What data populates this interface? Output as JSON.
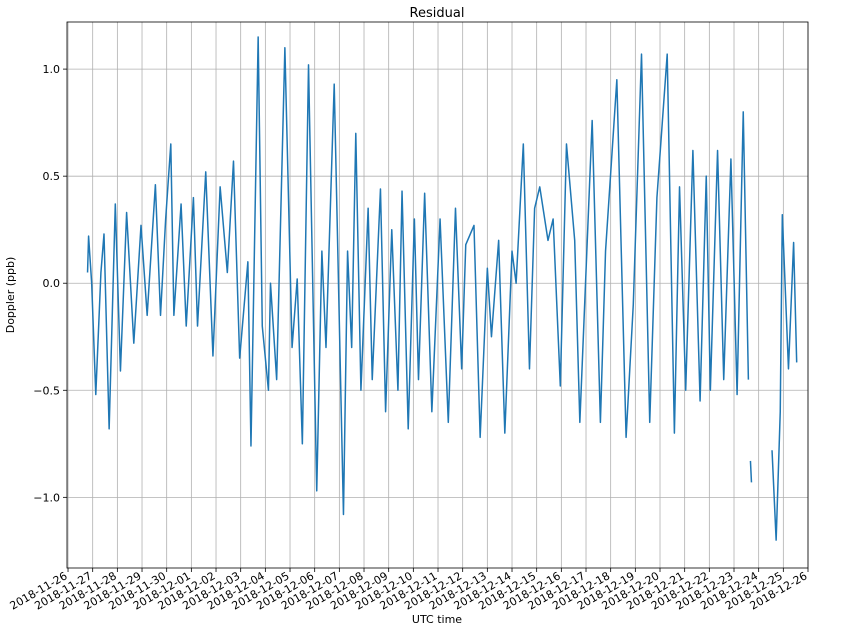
{
  "chart_data": {
    "type": "line",
    "title": "Residual",
    "x_label": "UTC time",
    "y_label": "Doppler (ppb)",
    "x": [
      "2018-11-26 19:00",
      "2018-11-26 20:00",
      "2018-11-26 23:00",
      "2018-11-27 03:00",
      "2018-11-27 08:00",
      "2018-11-27 11:00",
      "2018-11-27 16:00",
      "2018-11-27 22:00",
      "2018-11-28 03:00",
      "2018-11-28 09:00",
      "2018-11-28 16:00",
      "2018-11-28 23:00",
      "2018-11-29 05:00",
      "2018-11-29 13:00",
      "2018-11-29 18:00",
      "2018-11-29 23:00",
      "2018-11-30 04:00",
      "2018-11-30 07:00",
      "2018-11-30 14:00",
      "2018-11-30 19:00",
      "2018-12-01 02:00",
      "2018-12-01 06:00",
      "2018-12-01 14:00",
      "2018-12-01 21:00",
      "2018-12-02 04:00",
      "2018-12-02 11:00",
      "2018-12-02 17:00",
      "2018-12-02 23:00",
      "2018-12-03 07:00",
      "2018-12-03 10:00",
      "2018-12-03 17:00",
      "2018-12-03 21:00",
      "2018-12-04 03:00",
      "2018-12-04 05:00",
      "2018-12-04 11:00",
      "2018-12-04 19:00",
      "2018-12-05 02:00",
      "2018-12-05 07:00",
      "2018-12-05 12:00",
      "2018-12-05 18:00",
      "2018-12-06 02:00",
      "2018-12-06 07:00",
      "2018-12-06 11:00",
      "2018-12-06 19:00",
      "2018-12-07 04:00",
      "2018-12-07 08:00",
      "2018-12-07 12:00",
      "2018-12-07 16:00",
      "2018-12-07 21:00",
      "2018-12-08 04:00",
      "2018-12-08 08:00",
      "2018-12-08 16:00",
      "2018-12-08 21:00",
      "2018-12-09 03:00",
      "2018-12-09 09:00",
      "2018-12-09 13:00",
      "2018-12-09 19:00",
      "2018-12-10 01:00",
      "2018-12-10 05:00",
      "2018-12-10 11:00",
      "2018-12-10 18:00",
      "2018-12-11 02:00",
      "2018-12-11 10:00",
      "2018-12-11 17:00",
      "2018-12-11 23:00",
      "2018-12-12 03:00",
      "2018-12-12 11:00",
      "2018-12-12 17:00",
      "2018-12-13 00:00",
      "2018-12-13 04:00",
      "2018-12-13 11:00",
      "2018-12-13 17:00",
      "2018-12-14 00:00",
      "2018-12-14 04:00",
      "2018-12-14 11:00",
      "2018-12-14 17:00",
      "2018-12-14 22:00",
      "2018-12-15 03:00",
      "2018-12-15 11:00",
      "2018-12-15 16:00",
      "2018-12-15 23:00",
      "2018-12-16 05:00",
      "2018-12-16 13:00",
      "2018-12-16 18:00",
      "2018-12-17 06:00",
      "2018-12-17 14:00",
      "2018-12-17 19:00",
      "2018-12-18 06:00",
      "2018-12-18 15:00",
      "2018-12-18 22:00",
      "2018-12-19 06:00",
      "2018-12-19 14:00",
      "2018-12-19 21:00",
      "2018-12-20 07:00",
      "2018-12-20 14:00",
      "2018-12-20 19:00",
      "2018-12-21 01:00",
      "2018-12-21 08:00",
      "2018-12-21 15:00",
      "2018-12-21 21:00",
      "2018-12-22 01:00",
      "2018-12-22 08:00",
      "2018-12-22 14:00",
      "2018-12-22 21:00",
      "2018-12-23 03:00",
      "2018-12-23 09:00",
      "2018-12-23 14:00",
      "2018-12-23 15:00",
      "2018-12-23 16:00",
      "2018-12-23 17:00",
      "2018-12-24 00:00",
      "2018-12-24 13:00",
      "2018-12-24 17:00",
      "2018-12-24 21:00",
      "2018-12-24 23:00",
      "2018-12-25 05:00",
      "2018-12-25 10:00",
      "2018-12-25 13:00"
    ],
    "series": [
      {
        "color": "#1f77b4",
        "values": [
          0.05,
          0.22,
          0.0,
          -0.52,
          0.05,
          0.23,
          -0.68,
          0.37,
          -0.41,
          0.33,
          -0.28,
          0.27,
          -0.15,
          0.46,
          -0.15,
          0.3,
          0.65,
          -0.15,
          0.37,
          -0.2,
          0.4,
          -0.2,
          0.52,
          -0.34,
          0.45,
          0.05,
          0.57,
          -0.35,
          0.1,
          -0.76,
          1.15,
          -0.2,
          -0.5,
          0.0,
          -0.45,
          1.1,
          -0.3,
          0.02,
          -0.75,
          1.02,
          -0.97,
          0.15,
          -0.3,
          0.93,
          -1.08,
          0.15,
          -0.3,
          0.7,
          -0.5,
          0.35,
          -0.45,
          0.44,
          -0.6,
          0.25,
          -0.5,
          0.43,
          -0.68,
          0.3,
          -0.45,
          0.42,
          -0.6,
          0.3,
          -0.65,
          0.35,
          -0.4,
          0.18,
          0.27,
          -0.72,
          0.07,
          -0.25,
          0.2,
          -0.7,
          0.15,
          0.0,
          0.65,
          -0.4,
          0.35,
          0.45,
          0.2,
          0.3,
          -0.48,
          0.65,
          0.2,
          -0.65,
          0.76,
          -0.65,
          0.15,
          0.95,
          -0.72,
          -0.1,
          1.07,
          -0.65,
          0.4,
          1.07,
          -0.7,
          0.45,
          -0.5,
          0.62,
          -0.55,
          0.5,
          -0.5,
          0.62,
          -0.45,
          0.58,
          -0.52,
          0.8,
          -0.45,
          null,
          -0.83,
          -0.93,
          null,
          -0.78,
          -1.2,
          -0.6,
          0.32,
          -0.4,
          0.19,
          -0.37
        ]
      }
    ],
    "xlim": [
      "2018-11-25 23:00",
      "2018-12-26 00:00"
    ],
    "xticks": [
      "2018-11-26",
      "2018-11-27",
      "2018-11-28",
      "2018-11-29",
      "2018-11-30",
      "2018-12-01",
      "2018-12-02",
      "2018-12-03",
      "2018-12-04",
      "2018-12-05",
      "2018-12-06",
      "2018-12-07",
      "2018-12-08",
      "2018-12-09",
      "2018-12-10",
      "2018-12-11",
      "2018-12-12",
      "2018-12-13",
      "2018-12-14",
      "2018-12-15",
      "2018-12-16",
      "2018-12-17",
      "2018-12-18",
      "2018-12-19",
      "2018-12-20",
      "2018-12-21",
      "2018-12-22",
      "2018-12-23",
      "2018-12-24",
      "2018-12-25",
      "2018-12-26"
    ],
    "ylim": [
      -1.33,
      1.22
    ],
    "yticks": [
      {
        "value": -1,
        "label": "−1.0"
      },
      {
        "value": -0.5,
        "label": "−0.5"
      },
      {
        "value": 0,
        "label": "0.0"
      },
      0.5,
      {
        "value": 1,
        "label": "1.0"
      }
    ],
    "grid": true
  }
}
